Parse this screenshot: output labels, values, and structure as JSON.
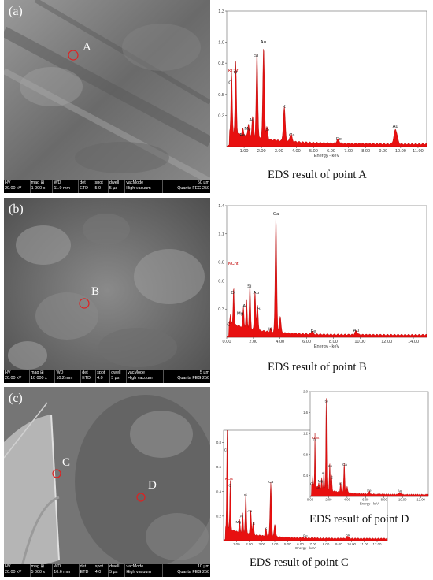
{
  "panels": [
    {
      "label": "(a)",
      "point": "A",
      "sem_bar": {
        "hv": "HV",
        "hv_val": "20.00 kV",
        "mag": "mag ⊞",
        "mag_val": "1 000 x",
        "wd": "WD",
        "wd_val": "11.9 mm",
        "det": "det",
        "det_val": "ETD",
        "spot": "spot",
        "spot_val": "5.0",
        "dwell": "dwell",
        "dwell_val": "5 µs",
        "vac": "vacMode",
        "vac_val": "High vacuum",
        "scale": "50 µm",
        "instrument": "Quanta FEG 250"
      },
      "caption": "EDS result of point A"
    },
    {
      "label": "(b)",
      "point": "B",
      "sem_bar": {
        "hv": "HV",
        "hv_val": "20.00 kV",
        "mag": "mag ⊞",
        "mag_val": "10 000 x",
        "wd": "WD",
        "wd_val": "10.2 mm",
        "det": "det",
        "det_val": "ETD",
        "spot": "spot",
        "spot_val": "4.0",
        "dwell": "dwell",
        "dwell_val": "5 µs",
        "vac": "vacMode",
        "vac_val": "High vacuum",
        "scale": "5 µm",
        "instrument": "Quanta FEG 250"
      },
      "caption": "EDS result of point B"
    },
    {
      "label": "(c)",
      "points": [
        "C",
        "D"
      ],
      "sem_bar": {
        "hv": "HV",
        "hv_val": "20.00 kV",
        "mag": "mag ⊞",
        "mag_val": "5 000 x",
        "wd": "WD",
        "wd_val": "10.6 mm",
        "det": "det",
        "det_val": "ETD",
        "spot": "spot",
        "spot_val": "4.0",
        "dwell": "dwell",
        "dwell_val": "5 µs",
        "vac": "vacMode",
        "vac_val": "High vacuum",
        "scale": "10 µm",
        "instrument": "Quanta FEG 250"
      },
      "caption_c": "EDS result of point C",
      "caption_d": "EDS result of point D"
    }
  ],
  "chart_data": [
    {
      "type": "line",
      "id": "A",
      "ylabel": "KCnt",
      "xlabel": "Energy - keV",
      "xlim": [
        0,
        11.5
      ],
      "ylim": [
        0,
        1.3
      ],
      "xticks": [
        1.0,
        2.0,
        3.0,
        4.0,
        5.0,
        6.0,
        7.0,
        8.0,
        9.0,
        10.0,
        11.0
      ],
      "yticks": [
        0.3,
        0.5,
        0.8,
        1.0,
        1.3
      ],
      "peaks": [
        [
          0.28,
          0.58,
          "C"
        ],
        [
          0.52,
          0.68,
          "O"
        ],
        [
          0.93,
          0.06,
          "Fe"
        ],
        [
          1.25,
          0.12,
          "Mg"
        ],
        [
          1.49,
          0.2,
          "Al"
        ],
        [
          1.74,
          0.84,
          "Si"
        ],
        [
          2.12,
          0.88,
          "Au"
        ],
        [
          2.31,
          0.12,
          "S"
        ],
        [
          3.31,
          0.33,
          "K"
        ],
        [
          3.69,
          0.08,
          "Ca"
        ],
        [
          6.4,
          0.04,
          "Fe"
        ],
        [
          9.71,
          0.14,
          "Au"
        ]
      ],
      "labels": [
        {
          "t": "C",
          "x": 0.2,
          "y": 0.6
        },
        {
          "t": "O",
          "x": 0.5,
          "y": 0.7
        },
        {
          "t": "Au",
          "x": 2.1,
          "y": 0.99
        },
        {
          "t": "Si",
          "x": 1.7,
          "y": 0.86
        },
        {
          "t": "Fe",
          "x": 0.9,
          "y": 0.1
        },
        {
          "t": "Mg",
          "x": 1.2,
          "y": 0.16
        },
        {
          "t": "Al",
          "x": 1.4,
          "y": 0.24
        },
        {
          "t": "S",
          "x": 2.35,
          "y": 0.15
        },
        {
          "t": "K",
          "x": 3.3,
          "y": 0.37
        },
        {
          "t": "Ca",
          "x": 3.75,
          "y": 0.1
        },
        {
          "t": "Fe",
          "x": 6.45,
          "y": 0.06
        },
        {
          "t": "Au",
          "x": 9.7,
          "y": 0.18
        }
      ]
    },
    {
      "type": "line",
      "id": "B",
      "ylabel": "KCnt",
      "xlabel": "Energy - keV",
      "xlim": [
        0,
        15
      ],
      "ylim": [
        0,
        1.4
      ],
      "xticks": [
        0.0,
        2.0,
        4.0,
        6.0,
        8.0,
        10.0,
        12.0,
        14.0
      ],
      "yticks": [
        0.3,
        0.6,
        0.8,
        1.1,
        1.4
      ],
      "peaks": [
        [
          0.28,
          0.1,
          "C"
        ],
        [
          0.52,
          0.42,
          "O"
        ],
        [
          1.25,
          0.22,
          "Mg"
        ],
        [
          1.49,
          0.3,
          "Al"
        ],
        [
          1.74,
          0.48,
          "Si"
        ],
        [
          2.12,
          0.42,
          "Au"
        ],
        [
          2.31,
          0.27,
          "S"
        ],
        [
          3.31,
          0.04,
          "K"
        ],
        [
          3.69,
          1.26,
          "Ca"
        ],
        [
          4.01,
          0.18,
          "Ca"
        ],
        [
          6.4,
          0.03,
          "Fe"
        ],
        [
          9.71,
          0.04,
          "Au"
        ]
      ],
      "labels": [
        {
          "t": "Ca",
          "x": 3.7,
          "y": 1.3
        },
        {
          "t": "Si",
          "x": 1.7,
          "y": 0.53
        },
        {
          "t": "O",
          "x": 0.45,
          "y": 0.46
        },
        {
          "t": "Au",
          "x": 2.2,
          "y": 0.46
        },
        {
          "t": "Al",
          "x": 1.35,
          "y": 0.32
        },
        {
          "t": "Mg",
          "x": 1.0,
          "y": 0.24
        },
        {
          "t": "S",
          "x": 2.4,
          "y": 0.29
        },
        {
          "t": "C",
          "x": 0.15,
          "y": 0.12
        },
        {
          "t": "K",
          "x": 3.25,
          "y": 0.07
        },
        {
          "t": "Fe",
          "x": 6.5,
          "y": 0.05
        },
        {
          "t": "Au",
          "x": 9.7,
          "y": 0.06
        }
      ]
    },
    {
      "type": "line",
      "id": "C",
      "ylabel": "KCnt",
      "xlabel": "Energy - keV",
      "xlim": [
        0,
        12.8
      ],
      "ylim": [
        0,
        0.9
      ],
      "xticks": [
        1.0,
        2.0,
        3.0,
        4.0,
        5.0,
        6.0,
        7.0,
        8.0,
        9.0,
        10.0,
        11.0,
        12.0
      ],
      "yticks": [
        0.2,
        0.4,
        0.6,
        0.8
      ],
      "peaks": [
        [
          0.28,
          0.82,
          "C"
        ],
        [
          0.52,
          0.4,
          "O"
        ],
        [
          1.25,
          0.1,
          "Mg"
        ],
        [
          1.49,
          0.16,
          "Al"
        ],
        [
          1.74,
          0.33,
          "Si"
        ],
        [
          2.12,
          0.2,
          "Au"
        ],
        [
          2.31,
          0.1,
          "S"
        ],
        [
          3.31,
          0.06,
          "K"
        ],
        [
          3.69,
          0.44,
          "Ca"
        ],
        [
          4.01,
          0.1,
          "Ca"
        ],
        [
          9.71,
          0.02,
          "Au"
        ]
      ],
      "labels": [
        {
          "t": "C",
          "x": 0.15,
          "y": 0.73
        },
        {
          "t": "O",
          "x": 0.5,
          "y": 0.44
        },
        {
          "t": "Si",
          "x": 1.7,
          "y": 0.36
        },
        {
          "t": "Ca",
          "x": 3.7,
          "y": 0.47
        },
        {
          "t": "Au",
          "x": 2.05,
          "y": 0.23
        },
        {
          "t": "Al",
          "x": 1.4,
          "y": 0.19
        },
        {
          "t": "Mg",
          "x": 1.15,
          "y": 0.14
        },
        {
          "t": "S",
          "x": 2.35,
          "y": 0.13
        },
        {
          "t": "K",
          "x": 3.3,
          "y": 0.09
        },
        {
          "t": "Fe",
          "x": 6.4,
          "y": 0.03
        },
        {
          "t": "Au",
          "x": 9.7,
          "y": 0.04
        }
      ]
    },
    {
      "type": "line",
      "id": "D",
      "ylabel": "KCnt",
      "xlabel": "Energy - keV",
      "xlim": [
        0,
        12.8
      ],
      "ylim": [
        0,
        2.0
      ],
      "xticks": [
        0.0,
        2.0,
        4.0,
        6.0,
        8.0,
        10.0,
        12.0
      ],
      "yticks": [
        0.4,
        0.8,
        1.2,
        1.6,
        2.0
      ],
      "peaks": [
        [
          0.28,
          0.18,
          "C"
        ],
        [
          0.52,
          1.0,
          "O"
        ],
        [
          0.93,
          0.1,
          "Fe"
        ],
        [
          1.25,
          0.2,
          "Mg"
        ],
        [
          1.49,
          0.38,
          "Al"
        ],
        [
          1.74,
          1.74,
          "Si"
        ],
        [
          2.12,
          0.52,
          "Au"
        ],
        [
          2.31,
          0.3,
          "S"
        ],
        [
          3.31,
          0.18,
          "K"
        ],
        [
          3.69,
          0.55,
          "Ca"
        ],
        [
          4.01,
          0.12,
          "Ca"
        ],
        [
          6.4,
          0.05,
          "Fe"
        ],
        [
          9.71,
          0.04,
          "Au"
        ]
      ],
      "labels": [
        {
          "t": "Si",
          "x": 1.75,
          "y": 1.8
        },
        {
          "t": "O",
          "x": 0.45,
          "y": 1.06
        },
        {
          "t": "Ca",
          "x": 3.75,
          "y": 0.59
        },
        {
          "t": "Au",
          "x": 2.15,
          "y": 0.56
        },
        {
          "t": "Al",
          "x": 1.4,
          "y": 0.42
        },
        {
          "t": "Mg",
          "x": 1.1,
          "y": 0.27
        },
        {
          "t": "Fe",
          "x": 0.8,
          "y": 0.14
        },
        {
          "t": "S",
          "x": 2.35,
          "y": 0.34
        },
        {
          "t": "K",
          "x": 3.3,
          "y": 0.22
        },
        {
          "t": "C",
          "x": 0.15,
          "y": 0.22
        },
        {
          "t": "Fe",
          "x": 6.4,
          "y": 0.09
        },
        {
          "t": "Au",
          "x": 9.7,
          "y": 0.08
        }
      ]
    }
  ]
}
